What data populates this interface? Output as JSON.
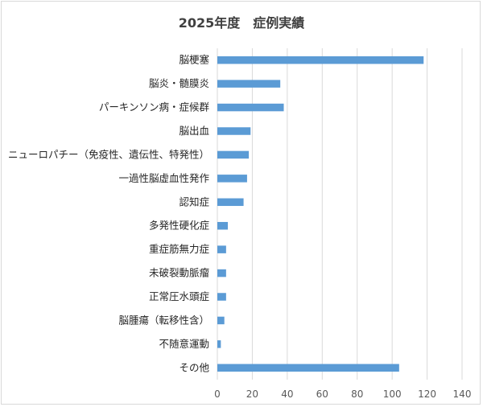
{
  "chart_data": {
    "type": "bar",
    "orientation": "horizontal",
    "title": "2025年度　症例実績",
    "categories": [
      "脳梗塞",
      "脳炎・髄膜炎",
      "パーキンソン病・症候群",
      "脳出血",
      "ニューロパチー（免疫性、遺伝性、特発性）",
      "一過性脳虚血性発作",
      "認知症",
      "多発性硬化症",
      "重症筋無力症",
      "未破裂動脈瘤",
      "正常圧水頭症",
      "脳腫瘍（転移性含）",
      "不随意運動",
      "その他"
    ],
    "values": [
      118,
      36,
      38,
      19,
      18,
      17,
      15,
      6,
      5,
      5,
      5,
      4,
      2,
      104
    ],
    "xlim": [
      0,
      140
    ],
    "xticks": [
      "0",
      "20",
      "40",
      "60",
      "80",
      "100",
      "120",
      "140"
    ],
    "grid": true,
    "legend": false,
    "bar_color": "#5b9bd5",
    "grid_color": "#d9d9d9"
  }
}
